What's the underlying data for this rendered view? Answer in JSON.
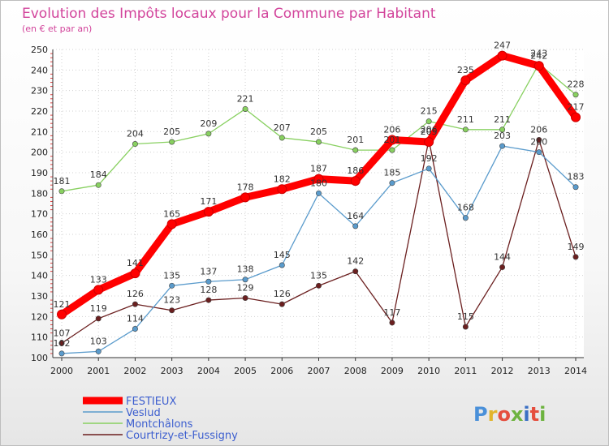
{
  "header": {
    "title": "Evolution des Impôts locaux pour la Commune par Habitant",
    "subtitle": "(en € et par an)"
  },
  "brand": {
    "name": "Proxiti",
    "letter_colors": [
      "#4a90d9",
      "#e2b42c",
      "#e54e3e",
      "#6db33f",
      "#3a6fc4",
      "#e54e3e",
      "#6db33f"
    ]
  },
  "chart_data": {
    "type": "line",
    "title": "Evolution des Impôts locaux pour la Commune par Habitant",
    "subtitle": "(en € et par an)",
    "xlabel": "",
    "ylabel": "",
    "x": [
      "2000",
      "2001",
      "2002",
      "2003",
      "2004",
      "2005",
      "2006",
      "2007",
      "2008",
      "2009",
      "2010",
      "2011",
      "2012",
      "2013",
      "2014"
    ],
    "ylim": [
      100,
      250
    ],
    "yticks": [
      100,
      110,
      120,
      130,
      140,
      150,
      160,
      170,
      180,
      190,
      200,
      210,
      220,
      230,
      240,
      250
    ],
    "grid": true,
    "legend_position": "bottom-left",
    "series": [
      {
        "name": "FESTIEUX",
        "color": "#ff0000",
        "values": [
          121,
          133,
          141,
          165,
          171,
          178,
          182,
          187,
          186,
          206,
          205,
          235,
          247,
          242,
          217
        ],
        "labels": [
          "121",
          "133",
          "141",
          "165",
          "171",
          "178",
          "182",
          "187",
          "186",
          "206",
          "205",
          "235",
          "247",
          "242",
          "217"
        ]
      },
      {
        "name": "Veslud",
        "color": "#5a9bcc",
        "values": [
          102,
          103,
          114,
          135,
          137,
          138,
          145,
          180,
          164,
          185,
          192,
          168,
          203,
          200,
          183
        ],
        "labels": [
          "102",
          "103",
          "114",
          "135",
          "137",
          "138",
          "145",
          "180",
          "164",
          "185",
          "192",
          "168",
          "203",
          "200",
          "183"
        ]
      },
      {
        "name": "Montchâlons",
        "color": "#88d060",
        "values": [
          181,
          184,
          204,
          205,
          209,
          221,
          207,
          205,
          201,
          201,
          215,
          211,
          211,
          243,
          228
        ],
        "labels": [
          "181",
          "184",
          "204",
          "205",
          "209",
          "221",
          "207",
          "205",
          "201",
          "201",
          "215",
          "211",
          "211",
          "243",
          "228"
        ]
      },
      {
        "name": "Courtrizy-et-Fussigny",
        "color": "#6b1f1f",
        "values": [
          107,
          119,
          126,
          123,
          128,
          129,
          126,
          135,
          142,
          117,
          206,
          115,
          144,
          206,
          149
        ],
        "labels": [
          "107",
          "119",
          "126",
          "123",
          "128",
          "129",
          "126",
          "135",
          "142",
          "117",
          "206",
          "115",
          "144",
          "206",
          "149"
        ]
      }
    ]
  }
}
